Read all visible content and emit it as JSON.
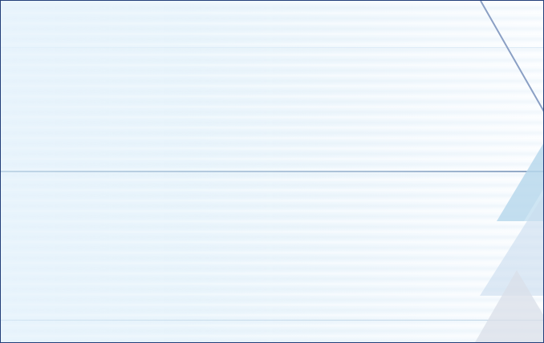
{
  "screen": {
    "kind": "blank-splash-background",
    "border_color": "#24407a",
    "background_colors": [
      "#e8f4fc",
      "#fbfdff"
    ],
    "accent_colors": {
      "diagonal_line": "#8a9fc4",
      "triangle_blue": "#b8d8ec",
      "triangle_pale": "#c9dcee",
      "triangle_grey": "#d9dfe8"
    }
  }
}
